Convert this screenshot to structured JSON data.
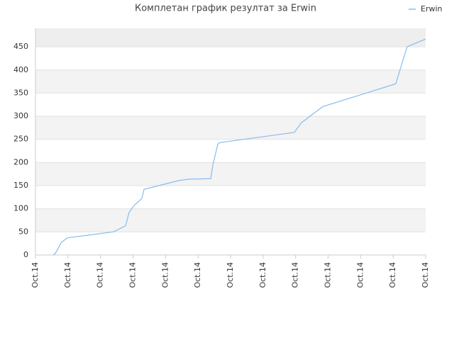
{
  "chart_data": {
    "type": "line",
    "title": "Комплетан график резултат за Erwin",
    "x": [
      0.55,
      0.59,
      0.65,
      0.79,
      0.98,
      2.4,
      2.77,
      2.88,
      3.03,
      3.27,
      3.34,
      4.41,
      4.73,
      5.39,
      5.46,
      5.61,
      5.67,
      7.96,
      8.18,
      8.84,
      11.08,
      11.43,
      12
    ],
    "series": [
      {
        "name": "Erwin",
        "color": "#88bbee",
        "values": [
          1,
          2,
          8,
          27,
          37,
          50,
          63,
          92,
          107,
          122,
          142,
          161,
          164,
          165,
          196,
          240,
          243,
          265,
          286,
          321,
          370,
          450,
          467
        ]
      }
    ],
    "xlim": [
      0,
      12
    ],
    "xticks": [
      {
        "value": 0,
        "label": "Oct.14"
      },
      {
        "value": 1,
        "label": "Oct.14"
      },
      {
        "value": 2,
        "label": "Oct.14"
      },
      {
        "value": 3,
        "label": "Oct.14"
      },
      {
        "value": 4,
        "label": "Oct.14"
      },
      {
        "value": 5,
        "label": "Oct.14"
      },
      {
        "value": 6,
        "label": "Oct.14"
      },
      {
        "value": 7,
        "label": "Oct.14"
      },
      {
        "value": 8,
        "label": "Oct.14"
      },
      {
        "value": 9,
        "label": "Oct.14"
      },
      {
        "value": 10,
        "label": "Oct.14"
      },
      {
        "value": 11,
        "label": "Oct.14"
      },
      {
        "value": 12,
        "label": "Oct.14"
      }
    ],
    "ylim": [
      0,
      490
    ],
    "yticks": [
      0,
      50,
      100,
      150,
      200,
      250,
      300,
      350,
      400,
      450
    ],
    "grid": true,
    "legend": "top-right"
  }
}
